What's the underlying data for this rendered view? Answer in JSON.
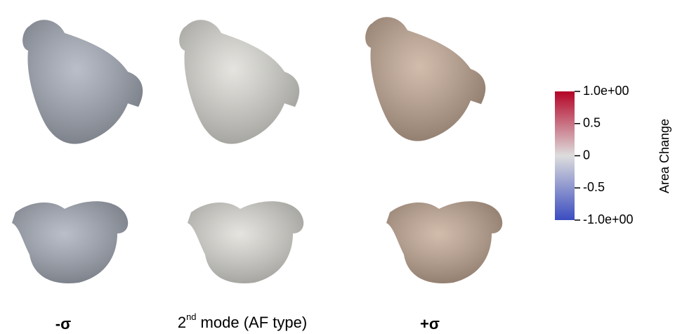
{
  "labels": {
    "minus": "-σ",
    "mode": {
      "number": "2",
      "suffix": "nd",
      "rest": "mode (AF type)"
    },
    "plus": "+σ"
  },
  "colorbar": {
    "title": "Area Change",
    "lim": [
      -1,
      1
    ],
    "ticks": [
      {
        "value": 1,
        "label": "1.0e+00"
      },
      0.5,
      0,
      -0.5,
      {
        "value": -1,
        "label": "-1.0e+00"
      }
    ],
    "colors": [
      "#3b4cc0",
      "#dddddd",
      "#b40426"
    ]
  }
}
